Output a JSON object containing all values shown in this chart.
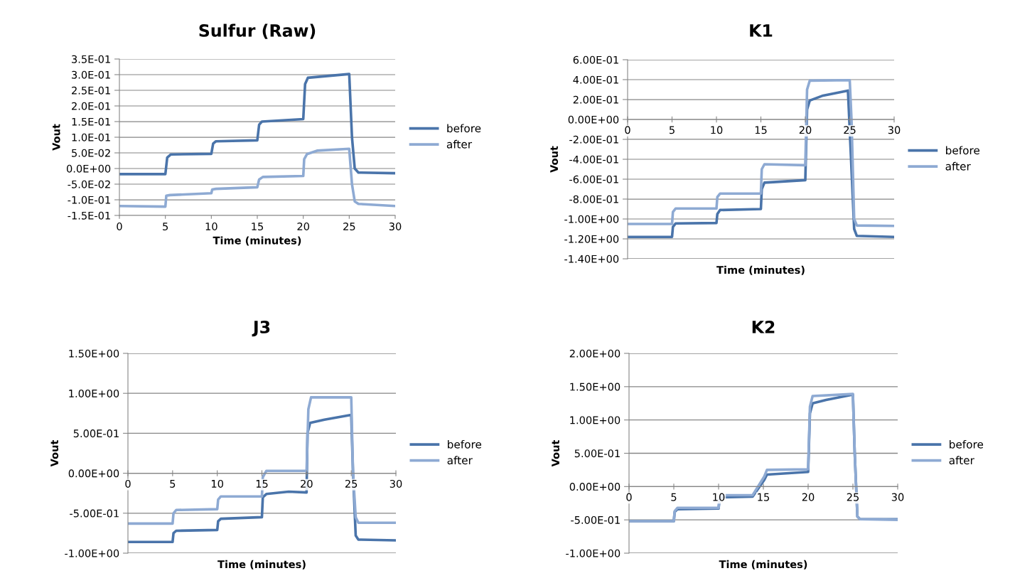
{
  "chart_data": [
    {
      "type": "line",
      "title": "Sulfur (Raw)",
      "xlabel": "Time (minutes)",
      "ylabel": "Vout",
      "xlim": [
        0,
        30
      ],
      "xticks": [
        0,
        5,
        10,
        15,
        20,
        25,
        30
      ],
      "ylim": [
        -0.15,
        0.35
      ],
      "yticks": [
        {
          "value": -0.15,
          "label": "-1.5E-01"
        },
        {
          "value": -0.1,
          "label": "-1.0E-01"
        },
        {
          "value": -0.05,
          "label": "-5.0E-02"
        },
        {
          "value": 0,
          "label": "0.0E+00"
        },
        {
          "value": 0.05,
          "label": "5.0E-02"
        },
        {
          "value": 0.1,
          "label": "1.0E-01"
        },
        {
          "value": 0.15,
          "label": "1.5E-01"
        },
        {
          "value": 0.2,
          "label": "2.0E-01"
        },
        {
          "value": 0.25,
          "label": "2.5E-01"
        },
        {
          "value": 0.3,
          "label": "3.0E-01"
        },
        {
          "value": 0.35,
          "label": "3.5E-01"
        }
      ],
      "grid": "y",
      "legend": "right",
      "marker": "none",
      "line_style": "solid",
      "series": [
        {
          "name": "before",
          "color": "#4a74aa",
          "x": [
            0,
            5,
            5.2,
            5.6,
            10,
            10.2,
            10.5,
            15,
            15.2,
            15.5,
            20,
            20.2,
            20.5,
            25,
            25.3,
            25.6,
            26,
            30
          ],
          "values": [
            -0.018,
            -0.018,
            0.035,
            0.045,
            0.047,
            0.08,
            0.087,
            0.09,
            0.14,
            0.15,
            0.158,
            0.27,
            0.29,
            0.302,
            0.1,
            0.0,
            -0.013,
            -0.015
          ]
        },
        {
          "name": "after",
          "color": "#8eaad3",
          "x": [
            0,
            5,
            5.1,
            5.5,
            10,
            10.1,
            10.5,
            15,
            15.2,
            15.6,
            20,
            20.1,
            20.4,
            21.5,
            25,
            25.3,
            25.6,
            26,
            30
          ],
          "values": [
            -0.12,
            -0.122,
            -0.087,
            -0.085,
            -0.079,
            -0.067,
            -0.065,
            -0.06,
            -0.035,
            -0.027,
            -0.024,
            0.03,
            0.046,
            0.057,
            0.063,
            -0.05,
            -0.105,
            -0.113,
            -0.12
          ]
        }
      ]
    },
    {
      "type": "line",
      "title": "K1",
      "xlabel": "Time (minutes)",
      "ylabel": "Vout",
      "xlim": [
        0,
        30
      ],
      "xticks": [
        0,
        5,
        10,
        15,
        20,
        25,
        30
      ],
      "ylim": [
        -1.4,
        0.6
      ],
      "yticks": [
        {
          "value": -1.4,
          "label": "-1.40E+00"
        },
        {
          "value": -1.2,
          "label": "-1.20E+00"
        },
        {
          "value": -1.0,
          "label": "-1.00E+00"
        },
        {
          "value": -0.8,
          "label": "-8.00E-01"
        },
        {
          "value": -0.6,
          "label": "-6.00E-01"
        },
        {
          "value": -0.4,
          "label": "-4.00E-01"
        },
        {
          "value": -0.2,
          "label": "-2.00E-01"
        },
        {
          "value": 0,
          "label": "0.00E+00"
        },
        {
          "value": 0.2,
          "label": "2.00E-01"
        },
        {
          "value": 0.4,
          "label": "4.00E-01"
        },
        {
          "value": 0.6,
          "label": "6.00E-01"
        }
      ],
      "grid": "y",
      "legend": "right",
      "marker": "none",
      "line_style": "solid",
      "series": [
        {
          "name": "before",
          "color": "#4a74aa",
          "x": [
            0,
            5,
            5.1,
            5.4,
            10,
            10.1,
            10.4,
            15,
            15.1,
            15.4,
            20,
            20.2,
            20.5,
            22,
            24.8,
            25.2,
            25.5,
            25.8,
            30
          ],
          "values": [
            -1.18,
            -1.18,
            -1.08,
            -1.045,
            -1.04,
            -0.95,
            -0.91,
            -0.9,
            -0.7,
            -0.635,
            -0.61,
            0.1,
            0.19,
            0.24,
            0.29,
            -0.5,
            -1.1,
            -1.17,
            -1.18
          ]
        },
        {
          "name": "after",
          "color": "#8eaad3",
          "x": [
            0,
            5,
            5.1,
            5.4,
            10,
            10.1,
            10.4,
            15,
            15.1,
            15.4,
            20,
            20.2,
            20.5,
            25,
            25.2,
            25.5,
            25.8,
            30
          ],
          "values": [
            -1.05,
            -1.05,
            -0.93,
            -0.895,
            -0.895,
            -0.78,
            -0.745,
            -0.745,
            -0.5,
            -0.45,
            -0.46,
            0.3,
            0.39,
            0.395,
            0.0,
            -1.0,
            -1.065,
            -1.07
          ]
        }
      ]
    },
    {
      "type": "line",
      "title": "J3",
      "xlabel": "Time (minutes)",
      "ylabel": "Vout",
      "xlim": [
        0,
        30
      ],
      "xticks": [
        0,
        5,
        10,
        15,
        20,
        25,
        30
      ],
      "ylim": [
        -1.0,
        1.5
      ],
      "yticks": [
        {
          "value": -1.0,
          "label": "-1.00E+00"
        },
        {
          "value": -0.5,
          "label": "-5.00E-01"
        },
        {
          "value": 0,
          "label": "0.00E+00"
        },
        {
          "value": 0.5,
          "label": "5.00E-01"
        },
        {
          "value": 1.0,
          "label": "1.00E+00"
        },
        {
          "value": 1.5,
          "label": "1.50E+00"
        }
      ],
      "grid": "y",
      "legend": "right",
      "marker": "none",
      "line_style": "solid",
      "series": [
        {
          "name": "before",
          "color": "#4a74aa",
          "x": [
            0,
            5,
            5.1,
            5.4,
            10,
            10.1,
            10.4,
            15,
            15.1,
            15.5,
            18,
            20,
            20.1,
            20.4,
            22,
            25,
            25.2,
            25.5,
            25.8,
            30
          ],
          "values": [
            -0.86,
            -0.86,
            -0.75,
            -0.72,
            -0.71,
            -0.6,
            -0.57,
            -0.55,
            -0.3,
            -0.26,
            -0.23,
            -0.24,
            0.5,
            0.63,
            0.67,
            0.73,
            0.0,
            -0.78,
            -0.83,
            -0.84
          ]
        },
        {
          "name": "after",
          "color": "#8eaad3",
          "x": [
            0,
            5,
            5.1,
            5.4,
            10,
            10.1,
            10.4,
            15,
            15.1,
            15.5,
            20,
            20.2,
            20.5,
            25,
            25.2,
            25.5,
            25.8,
            30
          ],
          "values": [
            -0.63,
            -0.63,
            -0.5,
            -0.46,
            -0.45,
            -0.33,
            -0.29,
            -0.29,
            -0.05,
            0.03,
            0.03,
            0.8,
            0.95,
            0.95,
            0.0,
            -0.55,
            -0.62,
            -0.62
          ]
        }
      ]
    },
    {
      "type": "line",
      "title": "K2",
      "xlabel": "Time (minutes)",
      "ylabel": "Vout",
      "xlim": [
        0,
        30
      ],
      "xticks": [
        0,
        5,
        10,
        15,
        20,
        25,
        30
      ],
      "ylim": [
        -1.0,
        2.0
      ],
      "yticks": [
        {
          "value": -1.0,
          "label": "-1.00E+00"
        },
        {
          "value": -0.5,
          "label": "-5.00E-01"
        },
        {
          "value": 0,
          "label": "0.00E+00"
        },
        {
          "value": 0.5,
          "label": "5.00E-01"
        },
        {
          "value": 1.0,
          "label": "1.00E+00"
        },
        {
          "value": 1.5,
          "label": "1.50E+00"
        },
        {
          "value": 2.0,
          "label": "2.00E+00"
        }
      ],
      "grid": "y",
      "legend": "right",
      "marker": "none",
      "line_style": "solid",
      "series": [
        {
          "name": "before",
          "color": "#4a74aa",
          "x": [
            0,
            5,
            5.1,
            5.4,
            10,
            10.1,
            10.4,
            13.8,
            15.1,
            15.4,
            20,
            20.2,
            20.5,
            22,
            25,
            25.2,
            25.5,
            25.8,
            30
          ],
          "values": [
            -0.52,
            -0.52,
            -0.38,
            -0.34,
            -0.33,
            -0.2,
            -0.16,
            -0.15,
            0.1,
            0.18,
            0.22,
            1.1,
            1.25,
            1.3,
            1.38,
            0.5,
            -0.45,
            -0.49,
            -0.49
          ]
        },
        {
          "name": "after",
          "color": "#8eaad3",
          "x": [
            0,
            5,
            5.1,
            5.4,
            10,
            10.1,
            10.4,
            13.8,
            15.1,
            15.4,
            20,
            20.2,
            20.5,
            25,
            25.2,
            25.5,
            25.8,
            30
          ],
          "values": [
            -0.52,
            -0.52,
            -0.37,
            -0.32,
            -0.32,
            -0.17,
            -0.13,
            -0.13,
            0.15,
            0.25,
            0.26,
            1.2,
            1.36,
            1.39,
            0.5,
            -0.45,
            -0.49,
            -0.5
          ]
        }
      ]
    }
  ]
}
